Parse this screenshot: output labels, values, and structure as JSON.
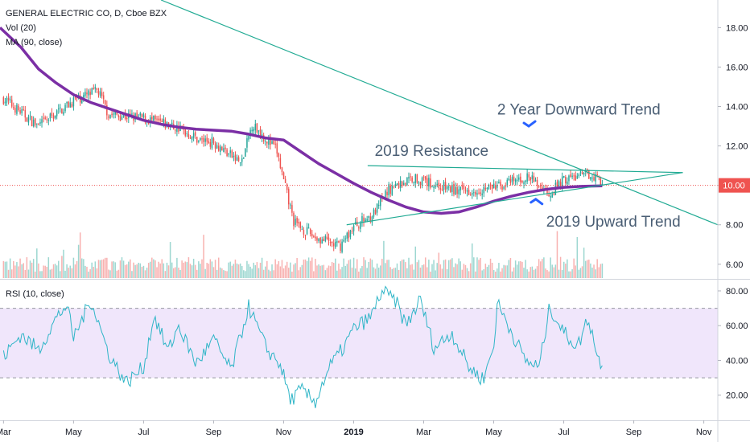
{
  "chart_data": {
    "type": "candlestick",
    "title": "GENERAL ELECTRIC CO, D, Cboe BZX",
    "legend": [
      {
        "name": "Vol (20)"
      },
      {
        "name": "MA (90, close)",
        "color": "#7b2fa5"
      }
    ],
    "price_axis": {
      "ylim": [
        5.3,
        19.4
      ],
      "ticks": [
        "18.00",
        "16.00",
        "14.00",
        "12.00",
        "10.00",
        "8.00",
        "6.00"
      ],
      "tick_values": [
        18,
        16,
        14,
        12,
        10,
        8,
        6
      ],
      "current_price_label": "10.00",
      "current_price": 10.0
    },
    "time_axis": {
      "month_labels": [
        "Mar",
        "May",
        "Jul",
        "Sep",
        "Nov",
        "2019",
        "Mar",
        "May",
        "Jul",
        "Sep",
        "Nov"
      ],
      "month_index": [
        0,
        2,
        4,
        6,
        8,
        10,
        12,
        14,
        16,
        18,
        20
      ],
      "range_months": [
        -0.1,
        20.4
      ]
    },
    "ohlc_monthly_approx": [
      {
        "x": 0.0,
        "close": 14.4
      },
      {
        "x": 1.0,
        "close": 13.0
      },
      {
        "x": 2.0,
        "close": 14.3
      },
      {
        "x": 2.7,
        "close": 14.8
      },
      {
        "x": 3.0,
        "close": 13.6
      },
      {
        "x": 4.0,
        "close": 13.4
      },
      {
        "x": 5.0,
        "close": 12.9
      },
      {
        "x": 5.6,
        "close": 12.3
      },
      {
        "x": 6.0,
        "close": 12.2
      },
      {
        "x": 6.8,
        "close": 11.1
      },
      {
        "x": 7.1,
        "close": 13.1
      },
      {
        "x": 7.8,
        "close": 11.8
      },
      {
        "x": 8.0,
        "close": 10.2
      },
      {
        "x": 8.3,
        "close": 8.1
      },
      {
        "x": 8.7,
        "close": 7.6
      },
      {
        "x": 9.0,
        "close": 7.3
      },
      {
        "x": 9.6,
        "close": 6.9
      },
      {
        "x": 10.0,
        "close": 7.9
      },
      {
        "x": 10.6,
        "close": 8.6
      },
      {
        "x": 11.0,
        "close": 9.8
      },
      {
        "x": 11.7,
        "close": 10.4
      },
      {
        "x": 12.0,
        "close": 10.2
      },
      {
        "x": 13.0,
        "close": 9.7
      },
      {
        "x": 14.0,
        "close": 9.9
      },
      {
        "x": 15.0,
        "close": 10.4
      },
      {
        "x": 15.6,
        "close": 9.6
      },
      {
        "x": 16.0,
        "close": 10.3
      },
      {
        "x": 16.8,
        "close": 10.6
      },
      {
        "x": 17.1,
        "close": 10.2
      }
    ],
    "ma_90": {
      "name": "MA (90, close)",
      "color": "#7b2fa5",
      "x": [
        -0.1,
        0.5,
        1.0,
        1.5,
        2.0,
        2.5,
        3.0,
        3.5,
        4.0,
        4.5,
        5.0,
        5.5,
        6.0,
        6.5,
        7.0,
        7.5,
        8.0,
        8.5,
        9.0,
        9.5,
        10.0,
        10.5,
        11.0,
        11.5,
        12.0,
        12.5,
        13.0,
        13.5,
        14.0,
        14.5,
        15.0,
        15.5,
        16.0,
        16.5,
        17.1
      ],
      "values": [
        18.0,
        17.0,
        15.9,
        15.2,
        14.6,
        14.2,
        13.9,
        13.6,
        13.3,
        13.1,
        12.95,
        12.85,
        12.8,
        12.75,
        12.6,
        12.4,
        12.3,
        11.7,
        11.1,
        10.6,
        10.1,
        9.65,
        9.25,
        8.9,
        8.65,
        8.58,
        8.65,
        8.9,
        9.2,
        9.45,
        9.65,
        9.8,
        9.9,
        9.95,
        9.98
      ]
    },
    "trend_lines": [
      {
        "label": "2 Year Downward Trend",
        "color": "#22ab94",
        "x1": 4.5,
        "y1": 19.4,
        "x2": 20.4,
        "y2": 8.0
      },
      {
        "label": "2019 Resistance",
        "color": "#22ab94",
        "x1": 10.4,
        "y1": 11.0,
        "x2": 19.4,
        "y2": 10.65
      },
      {
        "label": "2019 Upward Trend",
        "color": "#22ab94",
        "x1": 9.8,
        "y1": 8.0,
        "x2": 19.4,
        "y2": 10.65
      }
    ],
    "annotations": [
      {
        "text": "2 Year Downward Trend",
        "x": 14.1,
        "y": 13.6
      },
      {
        "text": "2019 Resistance",
        "x": 10.6,
        "y": 11.5
      },
      {
        "text": "2019 Upward Trend",
        "x": 15.5,
        "y": 7.9
      }
    ],
    "volume": {
      "name": "Vol (20)",
      "up_color": "#26a69a",
      "down_color": "#ef5350"
    },
    "rsi": {
      "name": "RSI (10, close)",
      "line_color": "#2eb5c7",
      "band": [
        30,
        70
      ],
      "band_color": "#f0e6fb",
      "ylim": [
        6,
        86
      ],
      "ticks": [
        "80.00",
        "60.00",
        "40.00",
        "20.00"
      ],
      "tick_values": [
        80,
        60,
        40,
        20
      ],
      "approx_path": [
        {
          "x": 0.0,
          "y": 42
        },
        {
          "x": 0.5,
          "y": 55
        },
        {
          "x": 1.0,
          "y": 46
        },
        {
          "x": 1.5,
          "y": 64
        },
        {
          "x": 1.8,
          "y": 72
        },
        {
          "x": 2.0,
          "y": 53
        },
        {
          "x": 2.5,
          "y": 75
        },
        {
          "x": 3.0,
          "y": 44
        },
        {
          "x": 3.5,
          "y": 27
        },
        {
          "x": 4.0,
          "y": 36
        },
        {
          "x": 4.3,
          "y": 66
        },
        {
          "x": 4.7,
          "y": 45
        },
        {
          "x": 5.0,
          "y": 60
        },
        {
          "x": 5.5,
          "y": 38
        },
        {
          "x": 6.0,
          "y": 52
        },
        {
          "x": 6.5,
          "y": 34
        },
        {
          "x": 7.0,
          "y": 71
        },
        {
          "x": 7.5,
          "y": 47
        },
        {
          "x": 7.9,
          "y": 38
        },
        {
          "x": 8.2,
          "y": 17
        },
        {
          "x": 8.5,
          "y": 23
        },
        {
          "x": 8.9,
          "y": 16
        },
        {
          "x": 9.3,
          "y": 36
        },
        {
          "x": 9.7,
          "y": 47
        },
        {
          "x": 10.0,
          "y": 58
        },
        {
          "x": 10.5,
          "y": 65
        },
        {
          "x": 10.8,
          "y": 80
        },
        {
          "x": 11.2,
          "y": 74
        },
        {
          "x": 11.5,
          "y": 60
        },
        {
          "x": 11.9,
          "y": 75
        },
        {
          "x": 12.3,
          "y": 47
        },
        {
          "x": 12.8,
          "y": 56
        },
        {
          "x": 13.3,
          "y": 36
        },
        {
          "x": 13.7,
          "y": 29
        },
        {
          "x": 14.0,
          "y": 48
        },
        {
          "x": 14.1,
          "y": 73
        },
        {
          "x": 14.5,
          "y": 57
        },
        {
          "x": 14.9,
          "y": 40
        },
        {
          "x": 15.3,
          "y": 36
        },
        {
          "x": 15.6,
          "y": 71
        },
        {
          "x": 16.0,
          "y": 56
        },
        {
          "x": 16.4,
          "y": 48
        },
        {
          "x": 16.7,
          "y": 65
        },
        {
          "x": 17.0,
          "y": 40
        },
        {
          "x": 17.1,
          "y": 39
        }
      ]
    }
  }
}
